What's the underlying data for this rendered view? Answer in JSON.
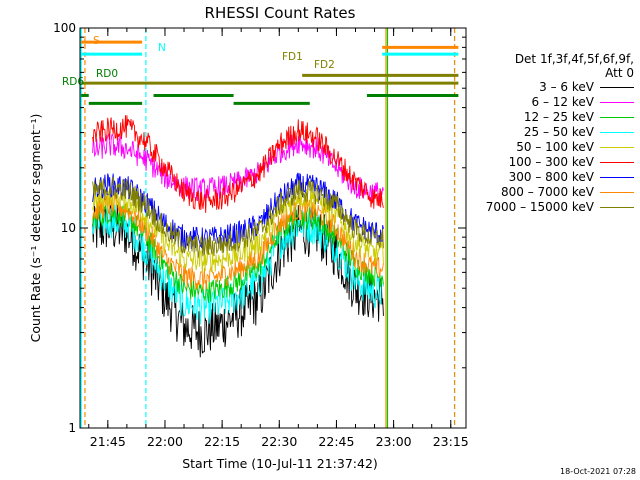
{
  "chart_data": {
    "type": "line",
    "title": "RHESSI Count Rates",
    "xlabel": "Start Time (10-Jul-11 21:37:42)",
    "ylabel": "Count Rate (s⁻¹ detector segment⁻¹)",
    "y_scale": "log",
    "ylim": [
      1,
      100
    ],
    "xlim": [
      "21:37:42",
      "23:19:00"
    ],
    "x_ticks": [
      "21:45",
      "22:00",
      "22:15",
      "22:30",
      "22:45",
      "23:00",
      "23:15"
    ],
    "y_ticks": [
      "1",
      "10",
      "100"
    ],
    "grid": false,
    "legend_position": "right",
    "legend_header": [
      "Det 1f,3f,4f,5f,6f,9f,",
      "Att 0"
    ],
    "series": [
      {
        "name": "3 - 6 keV",
        "color": "#000000",
        "x": [
          "21:41",
          "21:45",
          "21:50",
          "21:55",
          "22:00",
          "22:05",
          "22:10",
          "22:15",
          "22:20",
          "22:25",
          "22:30",
          "22:35",
          "22:40",
          "22:45",
          "22:50",
          "22:55"
        ],
        "values": [
          9.5,
          10.2,
          9.5,
          7,
          4.5,
          3.2,
          3,
          3.3,
          3.8,
          4.5,
          7.5,
          9.8,
          9.5,
          7.5,
          5,
          4.5
        ]
      },
      {
        "name": "6 - 12 keV",
        "color": "#ff00ff",
        "x": [
          "21:41",
          "21:45",
          "21:50",
          "21:55",
          "22:00",
          "22:05",
          "22:10",
          "22:15",
          "22:20",
          "22:25",
          "22:30",
          "22:35",
          "22:40",
          "22:45",
          "22:50",
          "22:55"
        ],
        "values": [
          24,
          26,
          25,
          22,
          18,
          16,
          15.5,
          16,
          17,
          19,
          24,
          27,
          25,
          20,
          16,
          15
        ]
      },
      {
        "name": "12 - 25 keV",
        "color": "#00cc00",
        "x": [
          "21:41",
          "21:45",
          "21:50",
          "21:55",
          "22:00",
          "22:05",
          "22:10",
          "22:15",
          "22:20",
          "22:25",
          "22:30",
          "22:35",
          "22:40",
          "22:45",
          "22:50",
          "22:55"
        ],
        "values": [
          11,
          12,
          11.5,
          9,
          6.5,
          5,
          4.8,
          5,
          5.5,
          6.5,
          9.5,
          11.5,
          11,
          9,
          6.5,
          5.8
        ]
      },
      {
        "name": "25 - 50 keV",
        "color": "#00ffff",
        "x": [
          "21:41",
          "21:45",
          "21:50",
          "21:55",
          "22:00",
          "22:05",
          "22:10",
          "22:15",
          "22:20",
          "22:25",
          "22:30",
          "22:35",
          "22:40",
          "22:45",
          "22:50",
          "22:55"
        ],
        "values": [
          10,
          11,
          10.5,
          8,
          5.5,
          4.2,
          4,
          4.2,
          4.7,
          5.5,
          8.5,
          10.5,
          10,
          8,
          5.5,
          4.8
        ]
      },
      {
        "name": "50 - 100 keV",
        "color": "#cccc00",
        "x": [
          "21:41",
          "21:45",
          "21:50",
          "21:55",
          "22:00",
          "22:05",
          "22:10",
          "22:15",
          "22:20",
          "22:25",
          "22:30",
          "22:35",
          "22:40",
          "22:45",
          "22:50",
          "22:55"
        ],
        "values": [
          13.5,
          14.5,
          14,
          11.5,
          8.5,
          7,
          6.8,
          7,
          7.5,
          8.5,
          12,
          14.5,
          14,
          11.5,
          8.5,
          7.5
        ]
      },
      {
        "name": "100 - 300 keV",
        "color": "#ff0000",
        "x": [
          "21:41",
          "21:45",
          "21:50",
          "21:55",
          "22:00",
          "22:05",
          "22:10",
          "22:15",
          "22:20",
          "22:25",
          "22:30",
          "22:35",
          "22:40",
          "22:45",
          "22:50",
          "22:55"
        ],
        "values": [
          29,
          31,
          32,
          27,
          20,
          15,
          13.5,
          14,
          16,
          19,
          26,
          31,
          28,
          22,
          17,
          14
        ]
      },
      {
        "name": "300 - 800 keV",
        "color": "#0000ff",
        "x": [
          "21:41",
          "21:45",
          "21:50",
          "21:55",
          "22:00",
          "22:05",
          "22:10",
          "22:15",
          "22:20",
          "22:25",
          "22:30",
          "22:35",
          "22:40",
          "22:45",
          "22:50",
          "22:55"
        ],
        "values": [
          15.5,
          16.5,
          16,
          13.5,
          10.5,
          9,
          8.8,
          9,
          9.5,
          10.5,
          14,
          16.5,
          16,
          13.5,
          10.5,
          9.5
        ]
      },
      {
        "name": "800 - 7000 keV",
        "color": "#ff8800",
        "x": [
          "21:41",
          "21:45",
          "21:50",
          "21:55",
          "22:00",
          "22:05",
          "22:10",
          "22:15",
          "22:20",
          "22:25",
          "22:30",
          "22:35",
          "22:40",
          "22:45",
          "22:50",
          "22:55"
        ],
        "values": [
          12,
          13,
          12.5,
          10,
          7,
          5.8,
          5.5,
          5.8,
          6.3,
          7.2,
          10.5,
          12.5,
          12,
          10,
          7.2,
          6.3
        ]
      },
      {
        "name": "7000 - 15000 keV",
        "color": "#808000",
        "x": [
          "21:41",
          "21:45",
          "21:50",
          "21:55",
          "22:00",
          "22:05",
          "22:10",
          "22:15",
          "22:20",
          "22:25",
          "22:30",
          "22:35",
          "22:40",
          "22:45",
          "22:50",
          "22:55"
        ],
        "values": [
          15,
          16,
          15.5,
          13,
          9.8,
          8.3,
          8,
          8.3,
          8.8,
          9.8,
          13,
          15.5,
          15,
          13,
          9.8,
          8.8
        ]
      }
    ],
    "annotations": [
      {
        "label": "S",
        "color": "#ff8800",
        "segments": [
          [
            "21:38",
            "21:54"
          ]
        ],
        "value": 85
      },
      {
        "label": "N",
        "color": "#00ffff",
        "segments": [
          [
            "21:38",
            "21:54"
          ],
          [
            "22:57",
            "23:17"
          ]
        ],
        "value": 74
      },
      {
        "label": "FD1",
        "color": "#808000",
        "segments": [
          [
            "22:36",
            "23:17"
          ]
        ],
        "value": 58
      },
      {
        "label": "FD2",
        "color": "#808000",
        "segments": [
          [
            "21:38",
            "23:17"
          ]
        ],
        "value": 53
      },
      {
        "label": "RD0",
        "color": "#008000",
        "segments": [
          [
            "21:38",
            "21:40"
          ],
          [
            "21:57",
            "22:18"
          ],
          [
            "22:53",
            "23:17"
          ]
        ],
        "value": 46
      },
      {
        "label": "RD6",
        "color": "#008000",
        "segments": [
          [
            "21:40",
            "21:54"
          ],
          [
            "22:18",
            "22:38"
          ]
        ],
        "value": 42
      },
      {
        "label": "",
        "color": "#ff8800",
        "segments": [
          [
            "22:57",
            "23:17"
          ]
        ],
        "value": 80
      }
    ],
    "vertical_markers": [
      {
        "x": "21:38",
        "color": "#00ffff",
        "style": "solid"
      },
      {
        "x": "21:39",
        "color": "#ff8800",
        "style": "dashed"
      },
      {
        "x": "21:55",
        "color": "#00ffff",
        "style": "dashed"
      },
      {
        "x": "22:58",
        "color": "#ff8800",
        "style": "solid"
      },
      {
        "x": "22:58",
        "color": "#00cc00",
        "style": "solid"
      },
      {
        "x": "23:16",
        "color": "#00ffff",
        "style": "dashed"
      },
      {
        "x": "23:16",
        "color": "#ff8800",
        "style": "dashed"
      }
    ]
  },
  "timestamp": "18-Oct-2021 07:28"
}
